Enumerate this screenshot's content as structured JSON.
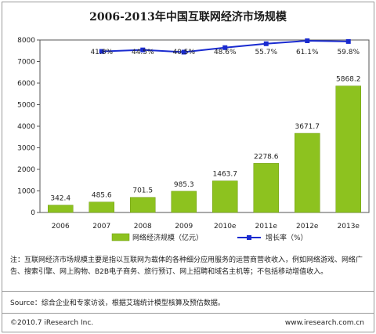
{
  "chart_data": {
    "type": "bar",
    "title": "2006-2013年中国互联网经济市场规模",
    "categories": [
      "2006",
      "2007",
      "2008",
      "2009",
      "2010e",
      "2011e",
      "2012e",
      "2013e"
    ],
    "series": [
      {
        "name": "网络经济规模（亿元）",
        "type": "bar",
        "axis": "left",
        "color": "#8dc21f",
        "values": [
          342.4,
          485.6,
          701.5,
          985.3,
          1463.7,
          2278.6,
          3671.7,
          5868.2
        ],
        "labels": [
          "342.4",
          "485.6",
          "701.5",
          "985.3",
          "1463.7",
          "2278.6",
          "3671.7",
          "5868.2"
        ]
      },
      {
        "name": "增长率（%）",
        "type": "line",
        "axis": "right",
        "color": "#1a2bd0",
        "values": [
          null,
          41.8,
          44.5,
          40.5,
          48.6,
          55.7,
          61.1,
          59.8
        ],
        "labels": [
          "",
          "41.8%",
          "44.5%",
          "40.5%",
          "48.6%",
          "55.7%",
          "61.1%",
          "59.8%"
        ]
      }
    ],
    "ylim": [
      0,
      8000
    ],
    "yticks": [
      "0",
      "1000",
      "2000",
      "3000",
      "4000",
      "5000",
      "6000",
      "7000",
      "8000"
    ],
    "legend_position": "bottom",
    "grid": false
  },
  "footer": {
    "note": "注：互联网经济市场规模主要是指以互联网为载体的各种细分应用服务的运营商营收收入，例如网络游戏、网络广告、搜索引擎、网上购物、B2B电子商务、旅行预订、网上招聘和域名主机等；不包括移动增值收入。",
    "source": "Source：综合企业和专家访谈，根据艾瑞统计模型核算及预估数据。",
    "copyright": "©2010.7 iResearch Inc.",
    "website": "www.iresearch.com.cn"
  }
}
